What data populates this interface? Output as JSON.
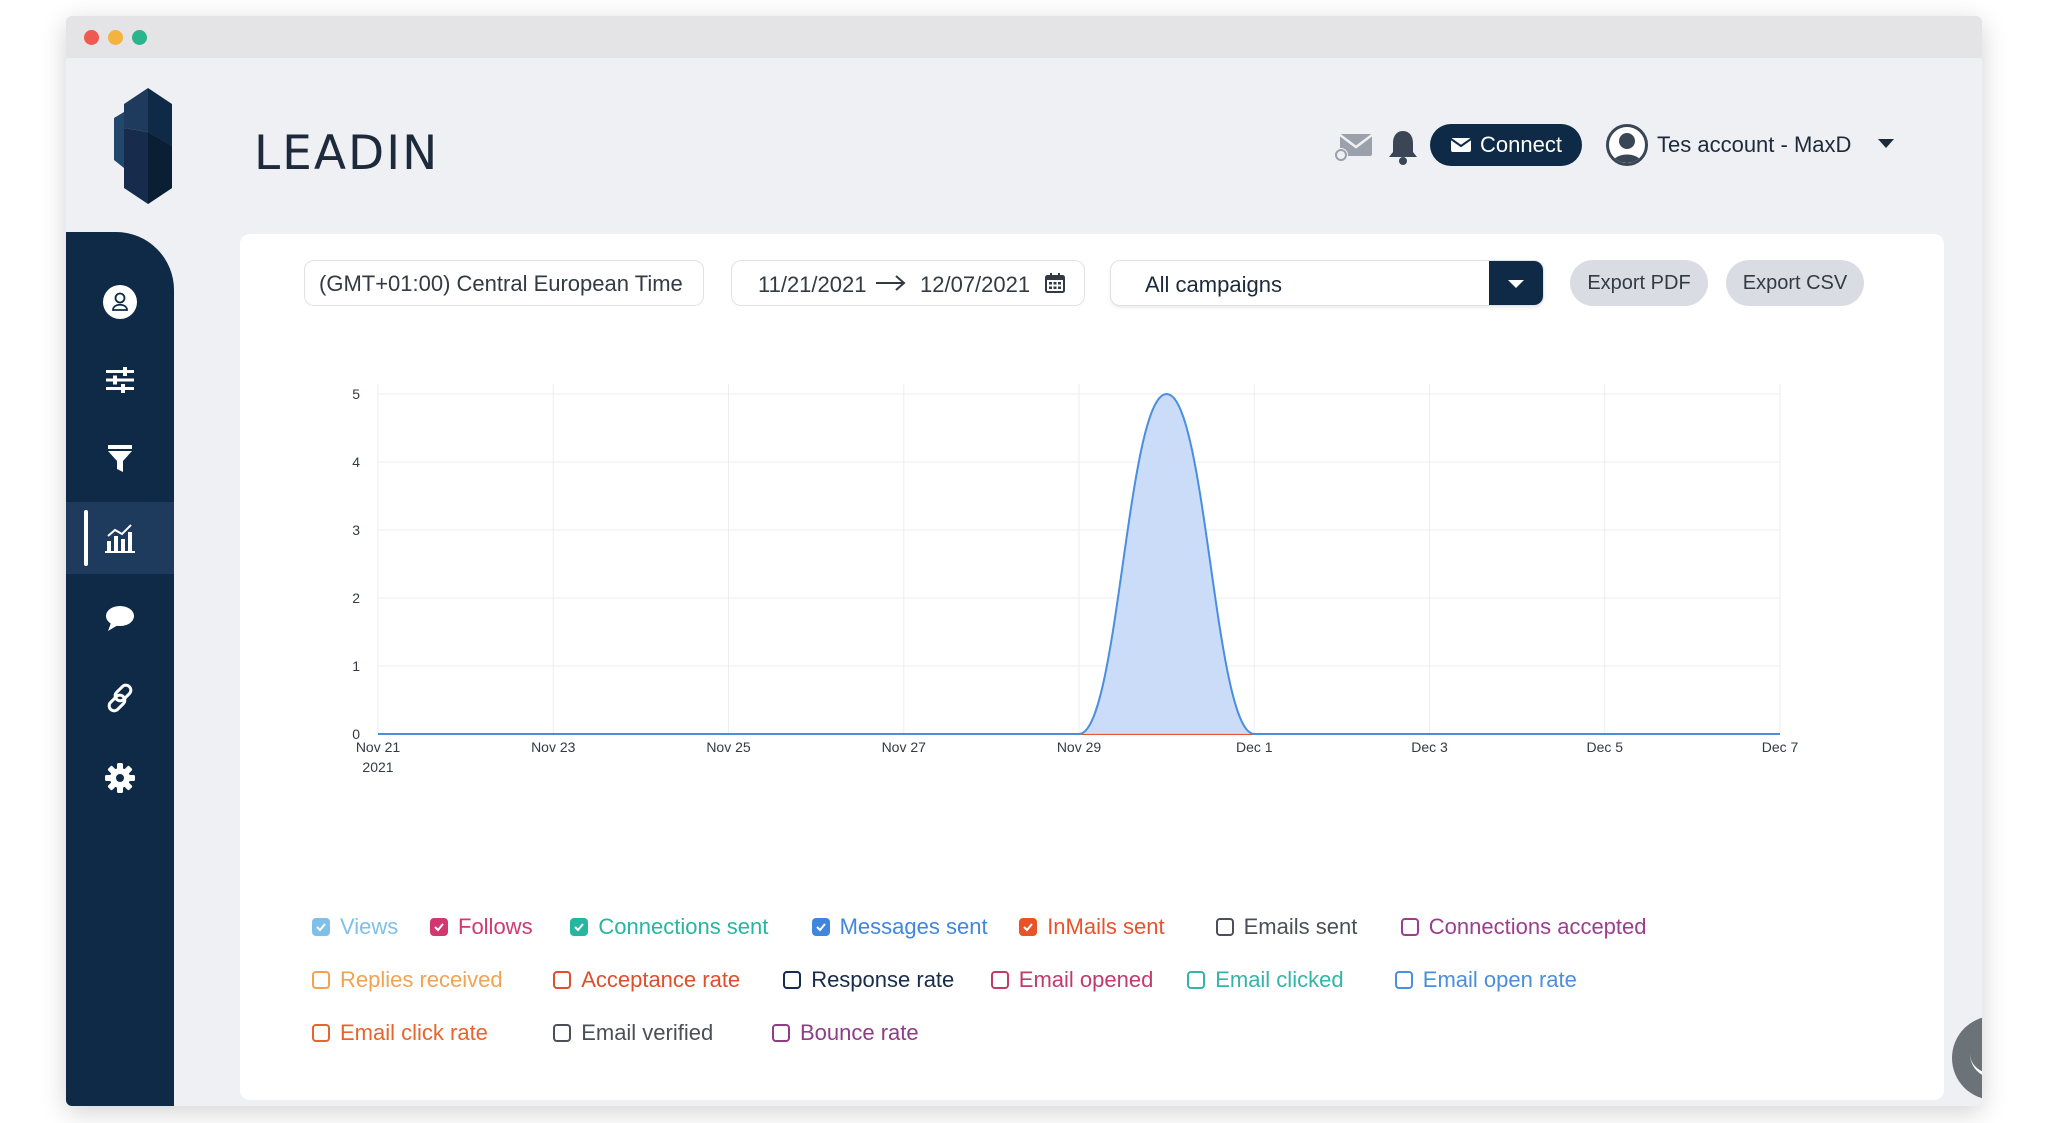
{
  "app": {
    "brand": "LEADIN"
  },
  "header": {
    "connect_label": "Connect",
    "account_name": "Tes account - MaxD"
  },
  "sidebar": {
    "items": [
      {
        "icon": "user-icon",
        "active": false
      },
      {
        "icon": "sliders-icon",
        "active": false
      },
      {
        "icon": "filter-icon",
        "active": false
      },
      {
        "icon": "analytics-icon",
        "active": true
      },
      {
        "icon": "chat-icon",
        "active": false
      },
      {
        "icon": "link-icon",
        "active": false
      },
      {
        "icon": "gear-icon",
        "active": false
      }
    ]
  },
  "filters": {
    "timezone": "(GMT+01:00) Central European Time",
    "date_start": "11/21/2021",
    "date_end": "12/07/2021",
    "campaign": "All campaigns",
    "export_pdf": "Export PDF",
    "export_csv": "Export CSV"
  },
  "chart_data": {
    "type": "area",
    "x": [
      "2021-11-21",
      "2021-11-22",
      "2021-11-23",
      "2021-11-24",
      "2021-11-25",
      "2021-11-26",
      "2021-11-27",
      "2021-11-28",
      "2021-11-29",
      "2021-11-30",
      "2021-12-01",
      "2021-12-02",
      "2021-12-03",
      "2021-12-04",
      "2021-12-05",
      "2021-12-06",
      "2021-12-07"
    ],
    "x_tick_labels": [
      "Nov 21",
      "Nov 23",
      "Nov 25",
      "Nov 27",
      "Nov 29",
      "Dec 1",
      "Dec 3",
      "Dec 5",
      "Dec 7"
    ],
    "x_tick_sublabel": "2021",
    "ylim": [
      0,
      5
    ],
    "y_ticks": [
      "0",
      "1",
      "2",
      "3",
      "4",
      "5"
    ],
    "grid": true,
    "series": [
      {
        "name": "InMails sent",
        "color": "#e8532a",
        "values": [
          0,
          0,
          0,
          0,
          0,
          0,
          0,
          0,
          0,
          0,
          0,
          0,
          0,
          0,
          0,
          0,
          0
        ]
      },
      {
        "name": "Messages sent",
        "color": "#4a8ee0",
        "fill": "#c7daf7",
        "values": [
          0,
          0,
          0,
          0,
          0,
          0,
          0,
          0,
          0,
          5,
          0,
          0,
          0,
          0,
          0,
          0,
          0
        ]
      }
    ]
  },
  "legend": [
    {
      "label": "Views",
      "color": "#7fc0e8",
      "checked": true,
      "row": 0
    },
    {
      "label": "Follows",
      "color": "#d0386f",
      "checked": true,
      "row": 0
    },
    {
      "label": "Connections sent",
      "color": "#26b5a0",
      "checked": true,
      "row": 0
    },
    {
      "label": "Messages sent",
      "color": "#3f86dc",
      "checked": true,
      "row": 0
    },
    {
      "label": "InMails sent",
      "color": "#e8532a",
      "checked": true,
      "row": 0
    },
    {
      "label": "Emails sent",
      "color": "#4a4f58",
      "checked": false,
      "row": 0
    },
    {
      "label": "Connections accepted",
      "color": "#9c3d8f",
      "checked": false,
      "row": 0
    },
    {
      "label": "Replies received",
      "color": "#f3a254",
      "checked": false,
      "row": 1
    },
    {
      "label": "Acceptance rate",
      "color": "#e04e2c",
      "checked": false,
      "row": 1
    },
    {
      "label": "Response rate",
      "color": "#172b4d",
      "checked": false,
      "row": 1
    },
    {
      "label": "Email opened",
      "color": "#c23a6a",
      "checked": false,
      "row": 1
    },
    {
      "label": "Email clicked",
      "color": "#32b5a8",
      "checked": false,
      "row": 1
    },
    {
      "label": "Email open rate",
      "color": "#4a8ee0",
      "checked": false,
      "row": 1
    },
    {
      "label": "Email click rate",
      "color": "#e8642c",
      "checked": false,
      "row": 2
    },
    {
      "label": "Email verified",
      "color": "#4a4f58",
      "checked": false,
      "row": 2
    },
    {
      "label": "Bounce rate",
      "color": "#8e3d86",
      "checked": false,
      "row": 2
    }
  ]
}
